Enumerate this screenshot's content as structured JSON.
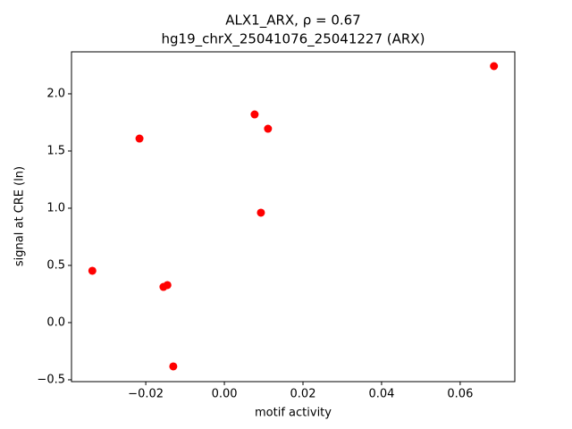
{
  "chart_data": {
    "type": "scatter",
    "title": "ALX1_ARX, ρ = 0.67",
    "subtitle": "hg19_chrX_25041076_25041227 (ARX)",
    "xlabel": "motif activity",
    "ylabel": "signal at CRE (ln)",
    "color": "#ff0000",
    "x": [
      0.0686,
      0.0077,
      0.0111,
      -0.0216,
      0.0093,
      -0.0336,
      -0.0155,
      -0.0145,
      -0.013
    ],
    "values": [
      2.242,
      1.82,
      1.695,
      1.609,
      0.961,
      0.453,
      0.312,
      0.328,
      -0.383
    ],
    "xlim": [
      -0.0389,
      0.0739
    ],
    "ylim": [
      -0.516,
      2.367
    ],
    "xticks": [
      {
        "value": -0.02,
        "label": "−0.02"
      },
      {
        "value": 0,
        "label": "0.00"
      },
      0.02,
      0.04,
      0.06
    ],
    "yticks": [
      {
        "value": -0.5,
        "label": "−0.5"
      },
      {
        "value": 0,
        "label": "0.0"
      },
      0.5,
      {
        "value": 1,
        "label": "1.0"
      },
      1.5,
      {
        "value": 2,
        "label": "2.0"
      }
    ],
    "grid": false
  }
}
